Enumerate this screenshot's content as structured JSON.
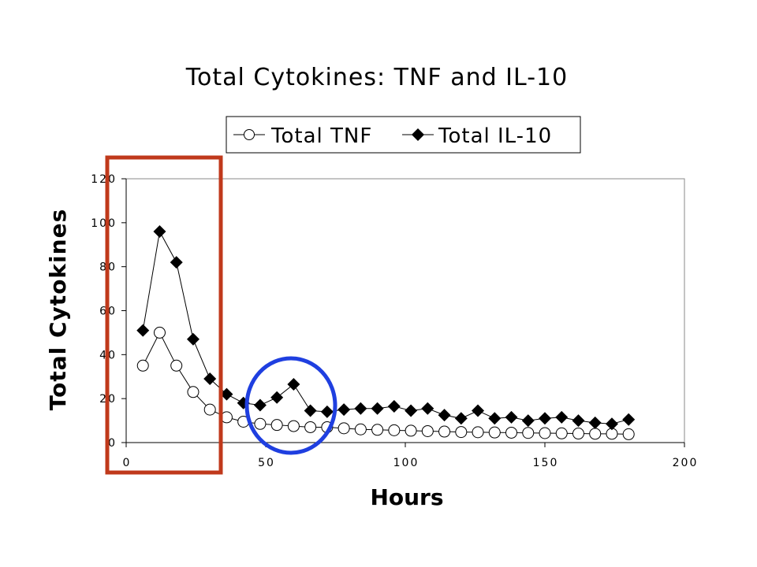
{
  "chart_data": {
    "type": "line",
    "title": "Total Cytokines: TNF and IL-10",
    "xlabel": "Hours",
    "ylabel": "Total Cytokines",
    "xlim": [
      0,
      200
    ],
    "ylim": [
      0,
      120
    ],
    "xticks": [
      0,
      50,
      100,
      150,
      200
    ],
    "yticks": [
      0,
      20,
      40,
      60,
      80,
      100,
      120
    ],
    "legend_position": "top",
    "grid": false,
    "x": [
      6,
      12,
      18,
      24,
      30,
      36,
      42,
      48,
      54,
      60,
      66,
      72,
      78,
      84,
      90,
      96,
      102,
      108,
      114,
      120,
      126,
      132,
      138,
      144,
      150,
      156,
      162,
      168,
      174,
      180
    ],
    "series": [
      {
        "name": "Total TNF",
        "marker": "open-circle",
        "values": [
          35,
          50,
          35,
          23,
          15,
          11.5,
          9.5,
          8.5,
          8,
          7.5,
          7,
          7,
          6.5,
          6,
          5.8,
          5.6,
          5.4,
          5.2,
          5,
          4.8,
          4.7,
          4.6,
          4.5,
          4.4,
          4.3,
          4.2,
          4.1,
          4,
          4,
          3.8
        ]
      },
      {
        "name": "Total IL-10",
        "marker": "filled-diamond",
        "values": [
          51,
          96,
          82,
          47,
          29,
          22,
          18,
          17,
          20.5,
          26.5,
          14.5,
          14,
          15,
          15.5,
          15.5,
          16.5,
          14.5,
          15.5,
          12.5,
          11,
          14.5,
          11,
          11.5,
          10,
          11,
          11.5,
          10,
          9,
          8.5,
          10.5
        ]
      }
    ],
    "highlight_color_red": "#c0391b",
    "highlight_color_blue": "#1f3fe0"
  }
}
